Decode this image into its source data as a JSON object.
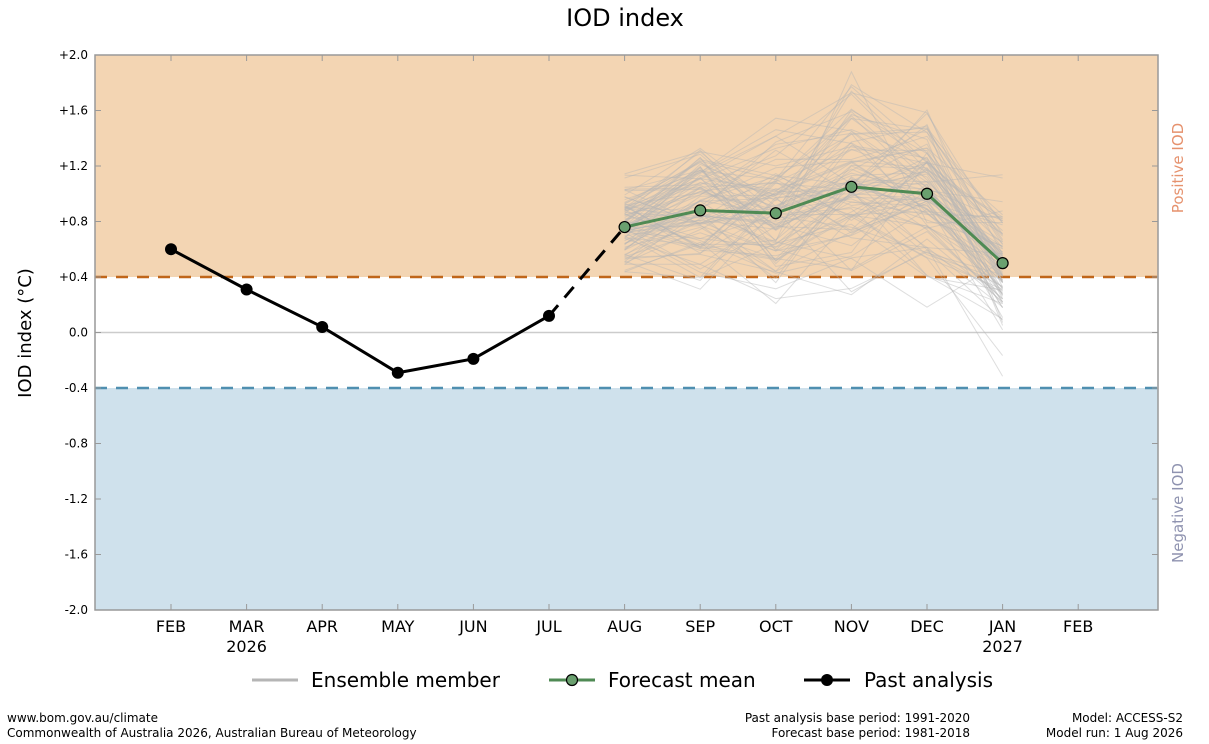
{
  "chart_data": {
    "type": "line",
    "title": "IOD index",
    "ylabel": "IOD index (°C)",
    "ylim": [
      -2.0,
      2.0
    ],
    "y_ticks": [
      "+2.0",
      "+1.6",
      "+1.2",
      "+0.8",
      "+0.4",
      "0.0",
      "-0.4",
      "-0.8",
      "-1.2",
      "-1.6",
      "-2.0"
    ],
    "y_tick_values": [
      2.0,
      1.6,
      1.2,
      0.8,
      0.4,
      0.0,
      -0.4,
      -0.8,
      -1.2,
      -1.6,
      -2.0
    ],
    "x_categories": [
      "FEB",
      "MAR",
      "APR",
      "MAY",
      "JUN",
      "JUL",
      "AUG",
      "SEP",
      "OCT",
      "NOV",
      "DEC",
      "JAN",
      "FEB"
    ],
    "x_year_labels": [
      {
        "index": 1,
        "text": "2026"
      },
      {
        "index": 11,
        "text": "2027"
      }
    ],
    "thresholds": {
      "positive": 0.4,
      "negative": -0.4,
      "positive_color": "#c0661a",
      "negative_color": "#4f8fb0",
      "positive_fill": "#f3d5b3",
      "negative_fill": "#cfe1ec"
    },
    "region_labels": {
      "positive": "Positive IOD",
      "negative": "Negative IOD"
    },
    "series": [
      {
        "name": "Past analysis",
        "color": "#000000",
        "x_index": [
          0,
          1,
          2,
          3,
          4,
          5
        ],
        "values": [
          0.6,
          0.31,
          0.04,
          -0.29,
          -0.19,
          0.12
        ]
      },
      {
        "name": "Forecast mean",
        "color": "#4f8a54",
        "marker_fill": "#6aa06f",
        "x_index": [
          6,
          7,
          8,
          9,
          10,
          11
        ],
        "values": [
          0.76,
          0.88,
          0.86,
          1.05,
          1.0,
          0.5
        ]
      }
    ],
    "connector": {
      "from": [
        5,
        0.12
      ],
      "to": [
        6,
        0.76
      ]
    },
    "ensemble": {
      "name": "Ensemble member",
      "color": "#b5b5b5",
      "x_index": [
        6,
        7,
        8,
        9,
        10,
        11
      ],
      "count": 99,
      "spread": [
        0.18,
        0.28,
        0.34,
        0.38,
        0.34,
        0.3
      ]
    },
    "legend": {
      "placement": "bottom",
      "items": [
        "Ensemble member",
        "Forecast mean",
        "Past analysis"
      ]
    }
  },
  "footer": {
    "left_line1": "www.bom.gov.au/climate",
    "left_line2": "Commonwealth of Australia 2026, Australian Bureau of Meteorology",
    "mid_line1": "Past analysis base period: 1991-2020",
    "mid_line2": "Forecast base period: 1981-2018",
    "right_line1": "Model: ACCESS-S2",
    "right_line2": "Model run: 1 Aug 2026"
  }
}
